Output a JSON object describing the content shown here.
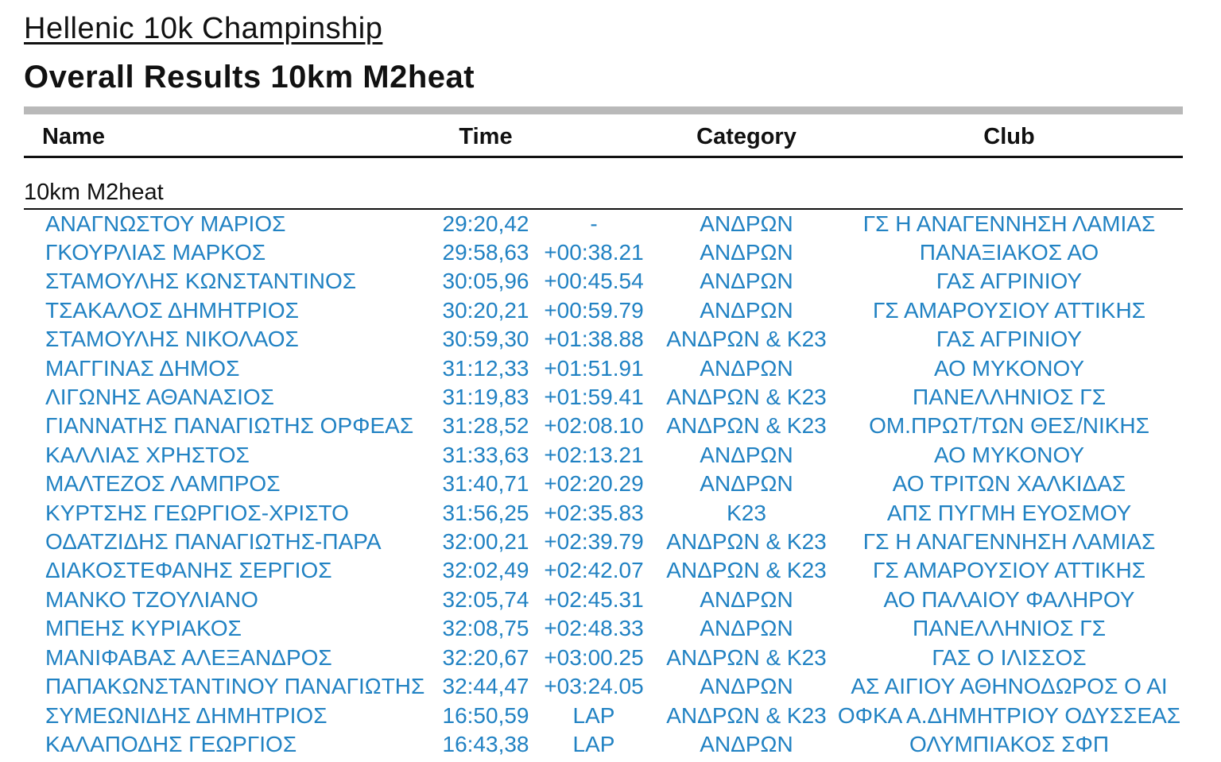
{
  "page": {
    "title": "Hellenic 10k Champinship",
    "subtitle": "Overall Results 10km M2heat"
  },
  "colors": {
    "row_text_blue": "#2182c3",
    "divider_gray": "#b9b9b9",
    "line_black": "#111111"
  },
  "table": {
    "columns": {
      "name": "Name",
      "time": "Time",
      "gap": "",
      "category": "Category",
      "club": "Club"
    },
    "section_label": "10km M2heat",
    "rows": [
      {
        "name": "ΑΝΑΓΝΩΣΤΟΥ ΜΑΡΙΟΣ",
        "time": "29:20,42",
        "gap": "-",
        "category": "ΑΝΔΡΩΝ",
        "club": "ΓΣ Η ΑΝΑΓΕΝΝΗΣΗ ΛΑΜΙΑΣ"
      },
      {
        "name": "ΓΚΟΥΡΛΙΑΣ ΜΑΡΚΟΣ",
        "time": "29:58,63",
        "gap": "+00:38.21",
        "category": "ΑΝΔΡΩΝ",
        "club": "ΠΑΝΑΞΙΑΚΟΣ ΑΟ"
      },
      {
        "name": "ΣΤΑΜΟΥΛΗΣ ΚΩΝΣΤΑΝΤΙΝΟΣ",
        "time": "30:05,96",
        "gap": "+00:45.54",
        "category": "ΑΝΔΡΩΝ",
        "club": "ΓΑΣ ΑΓΡΙΝΙΟΥ"
      },
      {
        "name": "ΤΣΑΚΑΛΟΣ ΔΗΜΗΤΡΙΟΣ",
        "time": "30:20,21",
        "gap": "+00:59.79",
        "category": "ΑΝΔΡΩΝ",
        "club": "ΓΣ ΑΜΑΡΟΥΣΙΟΥ ΑΤΤΙΚΗΣ"
      },
      {
        "name": "ΣΤΑΜΟΥΛΗΣ ΝΙΚΟΛΑΟΣ",
        "time": "30:59,30",
        "gap": "+01:38.88",
        "category": "ΑΝΔΡΩΝ & Κ23",
        "club": "ΓΑΣ ΑΓΡΙΝΙΟΥ"
      },
      {
        "name": "ΜΑΓΓΙΝΑΣ ΔΗΜΟΣ",
        "time": "31:12,33",
        "gap": "+01:51.91",
        "category": "ΑΝΔΡΩΝ",
        "club": "ΑΟ ΜΥΚΟΝΟΥ"
      },
      {
        "name": "ΛΙΓΩΝΗΣ ΑΘΑΝΑΣΙΟΣ",
        "time": "31:19,83",
        "gap": "+01:59.41",
        "category": "ΑΝΔΡΩΝ & Κ23",
        "club": "ΠΑΝΕΛΛΗΝΙΟΣ ΓΣ"
      },
      {
        "name": "ΓΙΑΝΝΑΤΗΣ ΠΑΝΑΓΙΩΤΗΣ ΟΡΦΕΑΣ",
        "time": "31:28,52",
        "gap": "+02:08.10",
        "category": "ΑΝΔΡΩΝ & Κ23",
        "club": "ΟΜ.ΠΡΩΤ/ΤΩΝ ΘΕΣ/ΝΙΚΗΣ"
      },
      {
        "name": "ΚΑΛΛΙΑΣ ΧΡΗΣΤΟΣ",
        "time": "31:33,63",
        "gap": "+02:13.21",
        "category": "ΑΝΔΡΩΝ",
        "club": "ΑΟ ΜΥΚΟΝΟΥ"
      },
      {
        "name": "ΜΑΛΤΕΖΟΣ ΛΑΜΠΡΟΣ",
        "time": "31:40,71",
        "gap": "+02:20.29",
        "category": "ΑΝΔΡΩΝ",
        "club": "ΑΟ ΤΡΙΤΩΝ ΧΑΛΚΙΔΑΣ"
      },
      {
        "name": "ΚΥΡΤΣΗΣ ΓΕΩΡΓΙΟΣ-ΧΡΙΣΤΟ",
        "time": "31:56,25",
        "gap": "+02:35.83",
        "category": "Κ23",
        "club": "ΑΠΣ ΠΥΓΜΗ ΕΥΟΣΜΟΥ"
      },
      {
        "name": "ΟΔΑΤΖΙΔΗΣ ΠΑΝΑΓΙΩΤΗΣ-ΠΑΡΑ",
        "time": "32:00,21",
        "gap": "+02:39.79",
        "category": "ΑΝΔΡΩΝ & Κ23",
        "club": "ΓΣ Η ΑΝΑΓΕΝΝΗΣΗ ΛΑΜΙΑΣ"
      },
      {
        "name": "ΔΙΑΚΟΣΤΕΦΑΝΗΣ ΣΕΡΓΙΟΣ",
        "time": "32:02,49",
        "gap": "+02:42.07",
        "category": "ΑΝΔΡΩΝ & Κ23",
        "club": "ΓΣ ΑΜΑΡΟΥΣΙΟΥ ΑΤΤΙΚΗΣ"
      },
      {
        "name": "ΜΑΝΚΟ ΤΖΟΥΛΙΑΝΟ",
        "time": "32:05,74",
        "gap": "+02:45.31",
        "category": "ΑΝΔΡΩΝ",
        "club": "ΑΟ ΠΑΛΑΙΟΥ ΦΑΛΗΡΟΥ"
      },
      {
        "name": "ΜΠΕΗΣ ΚΥΡΙΑΚΟΣ",
        "time": "32:08,75",
        "gap": "+02:48.33",
        "category": "ΑΝΔΡΩΝ",
        "club": "ΠΑΝΕΛΛΗΝΙΟΣ ΓΣ"
      },
      {
        "name": "ΜΑΝΙΦΑΒΑΣ ΑΛΕΞΑΝΔΡΟΣ",
        "time": "32:20,67",
        "gap": "+03:00.25",
        "category": "ΑΝΔΡΩΝ & Κ23",
        "club": "ΓΑΣ Ο ΙΛΙΣΣΟΣ"
      },
      {
        "name": "ΠΑΠΑΚΩΝΣΤΑΝΤΙΝΟΥ ΠΑΝΑΓΙΩΤΗΣ",
        "time": "32:44,47",
        "gap": "+03:24.05",
        "category": "ΑΝΔΡΩΝ",
        "club": "ΑΣ ΑΙΓΙΟΥ ΑΘΗΝΟΔΩΡΟΣ Ο ΑΙ"
      },
      {
        "name": "ΣΥΜΕΩΝΙΔΗΣ ΔΗΜΗΤΡΙΟΣ",
        "time": "16:50,59",
        "gap": "LAP",
        "category": "ΑΝΔΡΩΝ & Κ23",
        "club": "ΟΦΚΑ Α.ΔΗΜΗΤΡΙΟΥ ΟΔΥΣΣΕΑΣ"
      },
      {
        "name": "ΚΑΛΑΠΟΔΗΣ ΓΕΩΡΓΙΟΣ",
        "time": "16:43,38",
        "gap": "LAP",
        "category": "ΑΝΔΡΩΝ",
        "club": "ΟΛΥΜΠΙΑΚΟΣ ΣΦΠ"
      }
    ]
  }
}
